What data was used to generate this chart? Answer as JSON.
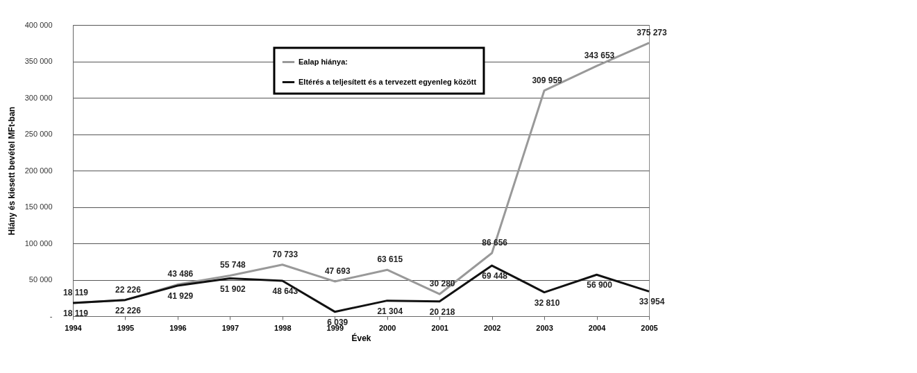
{
  "chart_data": {
    "type": "line",
    "xlabel": "Évek",
    "ylabel": "Hiány és kiesett bevétel MFt-ban",
    "categories": [
      "1994",
      "1995",
      "1996",
      "1997",
      "1998",
      "1999",
      "2000",
      "2001",
      "2002",
      "2003",
      "2004",
      "2005"
    ],
    "series": [
      {
        "name": "Ealap hiánya:",
        "color": "#999999",
        "values": [
          18119,
          22226,
          43486,
          55748,
          70733,
          47693,
          63615,
          30280,
          86656,
          309959,
          343653,
          375273
        ],
        "value_labels": [
          "18 119",
          "22 226",
          "43 486",
          "55 748",
          "70 733",
          "47 693",
          "63 615",
          "30 280",
          "86 656",
          "309 959",
          "343 653",
          "375 273"
        ]
      },
      {
        "name": "Eltérés a teljesített és a tervezett egyenleg között",
        "color": "#111111",
        "values": [
          18119,
          22226,
          41929,
          51902,
          48643,
          6039,
          21304,
          20218,
          69448,
          32810,
          56900,
          33954
        ],
        "value_labels": [
          "18 119",
          "22 226",
          "41 929",
          "51 902",
          "48 643",
          "6 039",
          "21 304",
          "20 218",
          "69 448",
          "32 810",
          "56 900",
          "33 954"
        ]
      }
    ],
    "ylim": [
      0,
      400000
    ],
    "yticks": [
      {
        "value": 0,
        "label": "-"
      },
      {
        "value": 50000,
        "label": "50 000"
      },
      {
        "value": 100000,
        "label": "100 000"
      },
      {
        "value": 150000,
        "label": "150 000"
      },
      {
        "value": 200000,
        "label": "200 000"
      },
      {
        "value": 250000,
        "label": "250 000"
      },
      {
        "value": 300000,
        "label": "300 000"
      },
      {
        "value": 350000,
        "label": "350 000"
      },
      {
        "value": 400000,
        "label": "400 000"
      }
    ],
    "grid": "y",
    "legend": "top",
    "marker": "none",
    "line_style": "solid"
  }
}
